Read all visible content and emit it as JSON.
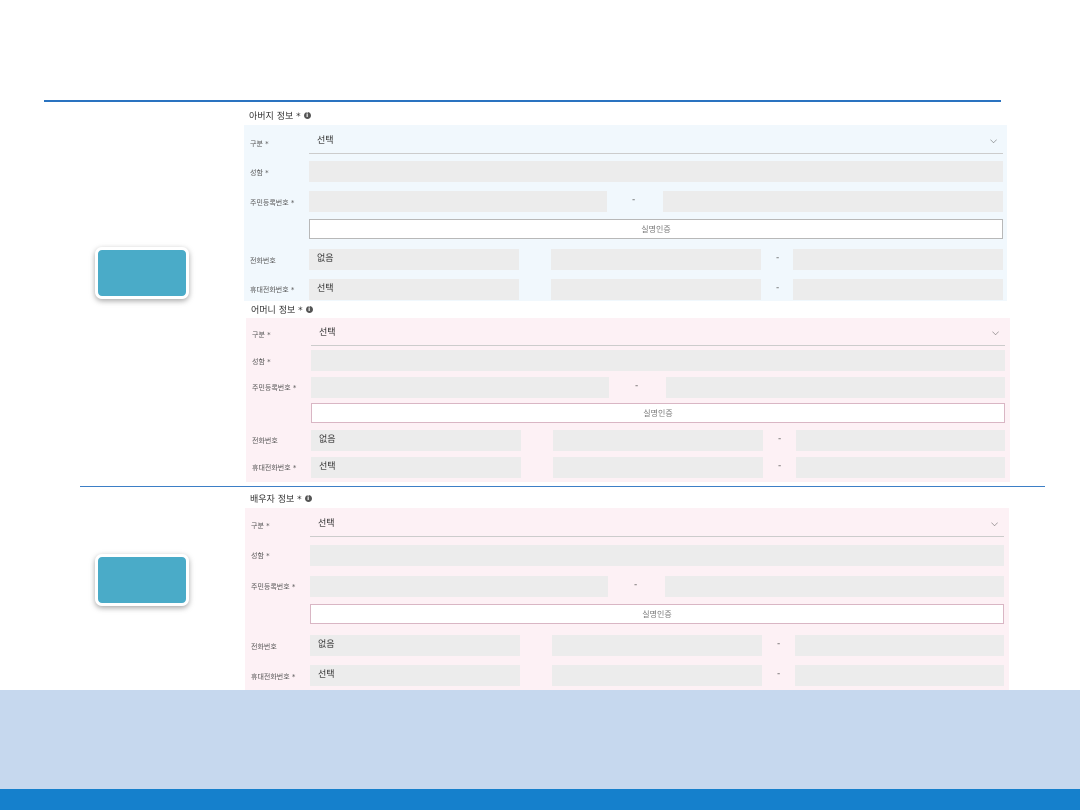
{
  "father": {
    "title": "아버지 정보 *",
    "type_label": "구분 *",
    "type_value": "선택",
    "name_label": "성함 *",
    "rrn_label": "주민등록번호 *",
    "verify_label": "실명인증",
    "phone_label": "전화번호",
    "phone_value": "없음",
    "mobile_label": "휴대전화번호 *",
    "mobile_value": "선택"
  },
  "mother": {
    "title": "어머니 정보 *",
    "type_label": "구분 *",
    "type_value": "선택",
    "name_label": "성함 *",
    "rrn_label": "주민등록번호 *",
    "verify_label": "실명인증",
    "phone_label": "전화번호",
    "phone_value": "없음",
    "mobile_label": "휴대전화번호 *",
    "mobile_value": "선택"
  },
  "spouse": {
    "title": "배우자 정보 *",
    "type_label": "구분 *",
    "type_value": "선택",
    "name_label": "성함 *",
    "rrn_label": "주민등록번호 *",
    "verify_label": "실명인증",
    "phone_label": "전화번호",
    "phone_value": "없음",
    "mobile_label": "휴대전화번호 *",
    "mobile_value": "선택"
  },
  "separator": "-",
  "info_glyph": "i",
  "chevron_glyph": "⌵",
  "colors": {
    "accent_line": "#2a73c0",
    "teal_button": "#4aabc8",
    "father_panel": "#f1f8fd",
    "mother_panel": "#fdf1f5",
    "bottom_band": "#c6d8ee",
    "bottom_bar": "#1580cc"
  }
}
